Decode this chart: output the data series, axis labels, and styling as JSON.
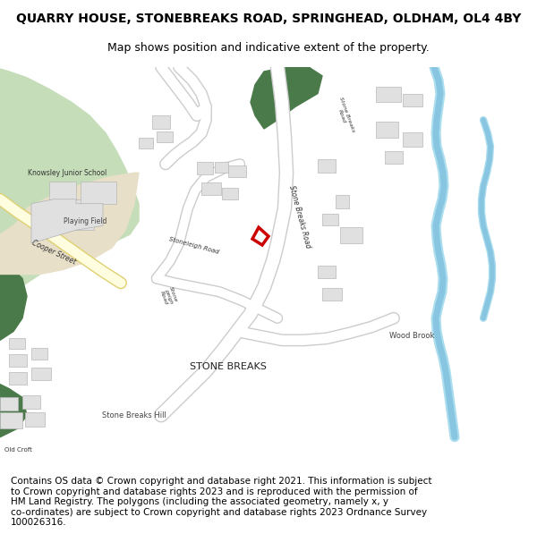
{
  "title": "QUARRY HOUSE, STONEBREAKS ROAD, SPRINGHEAD, OLDHAM, OL4 4BY",
  "subtitle": "Map shows position and indicative extent of the property.",
  "footer_line1": "Contains OS data © Crown copyright and database right 2021. This information is subject",
  "footer_line2": "to Crown copyright and database rights 2023 and is reproduced with the permission of",
  "footer_line3": "HM Land Registry. The polygons (including the associated geometry, namely x, y",
  "footer_line4": "co-ordinates) are subject to Crown copyright and database rights 2023 Ordnance Survey",
  "footer_line5": "100026316.",
  "bg_color": "#ffffff",
  "map_bg": "#f8f8f5",
  "road_color": "#ffffff",
  "road_outline": "#cccccc",
  "green_dark": "#4a7a4a",
  "green_light": "#c5ddb8",
  "building_color": "#e0e0e0",
  "building_outline": "#b8b8b8",
  "water_color": "#88c5e0",
  "water_bg": "#aaddee",
  "road_yellow": "#fffde0",
  "road_yellow_edge": "#e0d070",
  "plot_red": "#cc0000",
  "school_color": "#e8dfc8",
  "title_fontsize": 10,
  "subtitle_fontsize": 9,
  "footer_fontsize": 7.5
}
